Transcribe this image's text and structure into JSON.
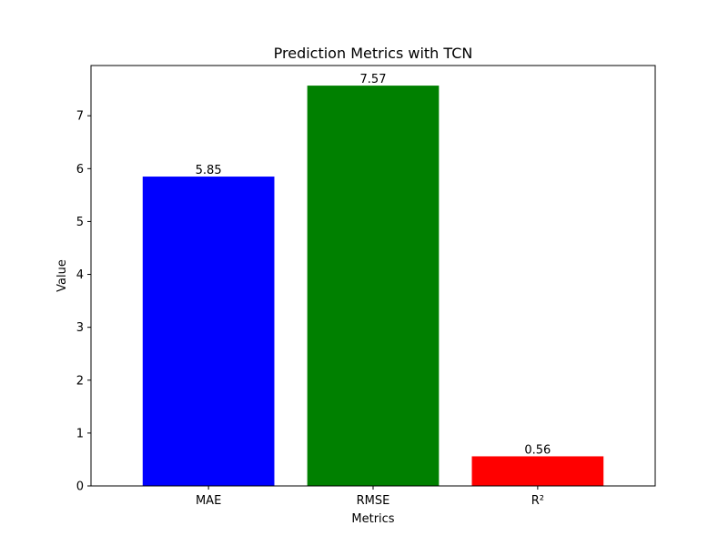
{
  "chart_data": {
    "type": "bar",
    "title": "Prediction Metrics with TCN",
    "xlabel": "Metrics",
    "ylabel": "Value",
    "categories": [
      "MAE",
      "RMSE",
      "R²"
    ],
    "values": [
      5.85,
      7.57,
      0.56
    ],
    "data_labels": [
      "5.85",
      "7.57",
      "0.56"
    ],
    "colors": [
      "#0000ff",
      "#008000",
      "#ff0000"
    ],
    "ylim": [
      0,
      7.95
    ],
    "yticks": [
      0,
      1,
      2,
      3,
      4,
      5,
      6,
      7
    ],
    "grid": false,
    "legend": "none"
  }
}
